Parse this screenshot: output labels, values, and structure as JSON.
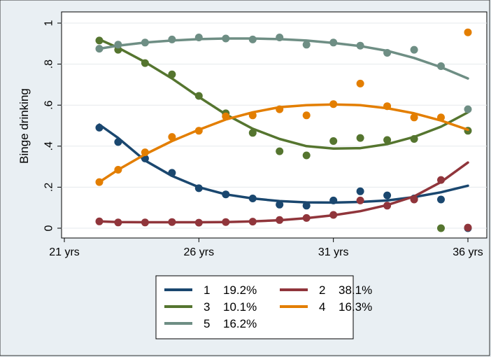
{
  "chart_data": {
    "type": "line",
    "ylabel": "Binge drinking",
    "xlabel": "",
    "xlim": [
      21,
      36
    ],
    "ylim": [
      0,
      1
    ],
    "x_ticks": [
      21,
      26,
      31,
      36
    ],
    "x_tick_labels": [
      "21 yrs",
      "26 yrs",
      "31 yrs",
      "36 yrs"
    ],
    "y_ticks": [
      0,
      0.2,
      0.4,
      0.6,
      0.8,
      1
    ],
    "y_tick_labels": [
      "0",
      ".2",
      ".4",
      ".6",
      ".8",
      "1"
    ],
    "grid": "horizontal",
    "legend_position": "bottom",
    "series": [
      {
        "name": "1",
        "percent": "19.2%",
        "color": "#1a476f",
        "points": [
          [
            22.3,
            0.49
          ],
          [
            23.0,
            0.42
          ],
          [
            24.0,
            0.34
          ],
          [
            25.0,
            0.27
          ],
          [
            26.0,
            0.195
          ],
          [
            27.0,
            0.165
          ],
          [
            28.0,
            0.145
          ],
          [
            29.0,
            0.115
          ],
          [
            30.0,
            0.11
          ],
          [
            31.0,
            0.135
          ],
          [
            32.0,
            0.18
          ],
          [
            33.0,
            0.16
          ],
          [
            34.0,
            0.145
          ],
          [
            35.0,
            0.14
          ],
          [
            36.0,
            0.0
          ]
        ],
        "fit": [
          [
            22.3,
            0.505
          ],
          [
            23.0,
            0.44
          ],
          [
            24.0,
            0.33
          ],
          [
            25.0,
            0.255
          ],
          [
            26.0,
            0.2
          ],
          [
            27.0,
            0.165
          ],
          [
            28.0,
            0.145
          ],
          [
            29.0,
            0.132
          ],
          [
            30.0,
            0.126
          ],
          [
            31.0,
            0.125
          ],
          [
            32.0,
            0.128
          ],
          [
            33.0,
            0.135
          ],
          [
            34.0,
            0.152
          ],
          [
            35.0,
            0.175
          ],
          [
            36.0,
            0.207
          ]
        ]
      },
      {
        "name": "2",
        "percent": "38.1%",
        "color": "#90353b",
        "points": [
          [
            22.3,
            0.033
          ],
          [
            23.0,
            0.028
          ],
          [
            24.0,
            0.028
          ],
          [
            25.0,
            0.03
          ],
          [
            26.0,
            0.027
          ],
          [
            27.0,
            0.03
          ],
          [
            28.0,
            0.032
          ],
          [
            29.0,
            0.04
          ],
          [
            30.0,
            0.05
          ],
          [
            31.0,
            0.065
          ],
          [
            32.0,
            0.135
          ],
          [
            33.0,
            0.11
          ],
          [
            34.0,
            0.14
          ],
          [
            35.0,
            0.235
          ],
          [
            36.0,
            0.003
          ]
        ],
        "fit": [
          [
            22.3,
            0.033
          ],
          [
            23.0,
            0.03
          ],
          [
            24.0,
            0.029
          ],
          [
            25.0,
            0.029
          ],
          [
            26.0,
            0.029
          ],
          [
            27.0,
            0.03
          ],
          [
            28.0,
            0.033
          ],
          [
            29.0,
            0.039
          ],
          [
            30.0,
            0.049
          ],
          [
            31.0,
            0.063
          ],
          [
            32.0,
            0.083
          ],
          [
            33.0,
            0.113
          ],
          [
            34.0,
            0.155
          ],
          [
            35.0,
            0.225
          ],
          [
            36.0,
            0.32
          ]
        ]
      },
      {
        "name": "3",
        "percent": "10.1%",
        "color": "#55752f",
        "points": [
          [
            22.3,
            0.915
          ],
          [
            23.0,
            0.87
          ],
          [
            24.0,
            0.805
          ],
          [
            25.0,
            0.75
          ],
          [
            26.0,
            0.645
          ],
          [
            27.0,
            0.56
          ],
          [
            28.0,
            0.465
          ],
          [
            29.0,
            0.375
          ],
          [
            30.0,
            0.355
          ],
          [
            31.0,
            0.425
          ],
          [
            32.0,
            0.44
          ],
          [
            33.0,
            0.43
          ],
          [
            34.0,
            0.435
          ],
          [
            35.0,
            0.0
          ],
          [
            36.0,
            0.475
          ]
        ],
        "fit": [
          [
            22.3,
            0.92
          ],
          [
            23.0,
            0.88
          ],
          [
            24.0,
            0.81
          ],
          [
            25.0,
            0.73
          ],
          [
            26.0,
            0.64
          ],
          [
            27.0,
            0.555
          ],
          [
            28.0,
            0.485
          ],
          [
            29.0,
            0.435
          ],
          [
            30.0,
            0.4
          ],
          [
            31.0,
            0.388
          ],
          [
            32.0,
            0.39
          ],
          [
            33.0,
            0.41
          ],
          [
            34.0,
            0.445
          ],
          [
            35.0,
            0.495
          ],
          [
            36.0,
            0.565
          ]
        ]
      },
      {
        "name": "4",
        "percent": "16.3%",
        "color": "#e37e00",
        "points": [
          [
            22.3,
            0.225
          ],
          [
            23.0,
            0.285
          ],
          [
            24.0,
            0.37
          ],
          [
            25.0,
            0.445
          ],
          [
            26.0,
            0.475
          ],
          [
            27.0,
            0.545
          ],
          [
            28.0,
            0.55
          ],
          [
            29.0,
            0.58
          ],
          [
            30.0,
            0.55
          ],
          [
            31.0,
            0.605
          ],
          [
            32.0,
            0.705
          ],
          [
            33.0,
            0.595
          ],
          [
            34.0,
            0.54
          ],
          [
            35.0,
            0.54
          ],
          [
            36.0,
            0.955
          ]
        ],
        "fit": [
          [
            22.3,
            0.225
          ],
          [
            23.0,
            0.285
          ],
          [
            24.0,
            0.36
          ],
          [
            25.0,
            0.425
          ],
          [
            26.0,
            0.48
          ],
          [
            27.0,
            0.53
          ],
          [
            28.0,
            0.565
          ],
          [
            29.0,
            0.59
          ],
          [
            30.0,
            0.6
          ],
          [
            31.0,
            0.603
          ],
          [
            32.0,
            0.6
          ],
          [
            33.0,
            0.585
          ],
          [
            34.0,
            0.56
          ],
          [
            35.0,
            0.525
          ],
          [
            36.0,
            0.48
          ]
        ]
      },
      {
        "name": "5",
        "percent": "16.2%",
        "color": "#6e8e84",
        "points": [
          [
            22.3,
            0.875
          ],
          [
            23.0,
            0.895
          ],
          [
            24.0,
            0.905
          ],
          [
            25.0,
            0.92
          ],
          [
            26.0,
            0.93
          ],
          [
            27.0,
            0.925
          ],
          [
            28.0,
            0.92
          ],
          [
            29.0,
            0.93
          ],
          [
            30.0,
            0.895
          ],
          [
            31.0,
            0.905
          ],
          [
            32.0,
            0.89
          ],
          [
            33.0,
            0.855
          ],
          [
            34.0,
            0.87
          ],
          [
            35.0,
            0.79
          ],
          [
            36.0,
            0.58
          ]
        ],
        "fit": [
          [
            22.3,
            0.875
          ],
          [
            23.0,
            0.89
          ],
          [
            24.0,
            0.905
          ],
          [
            25.0,
            0.915
          ],
          [
            26.0,
            0.922
          ],
          [
            27.0,
            0.925
          ],
          [
            28.0,
            0.925
          ],
          [
            29.0,
            0.922
          ],
          [
            30.0,
            0.915
          ],
          [
            31.0,
            0.903
          ],
          [
            32.0,
            0.888
          ],
          [
            33.0,
            0.865
          ],
          [
            34.0,
            0.83
          ],
          [
            35.0,
            0.785
          ],
          [
            36.0,
            0.73
          ]
        ]
      }
    ]
  }
}
